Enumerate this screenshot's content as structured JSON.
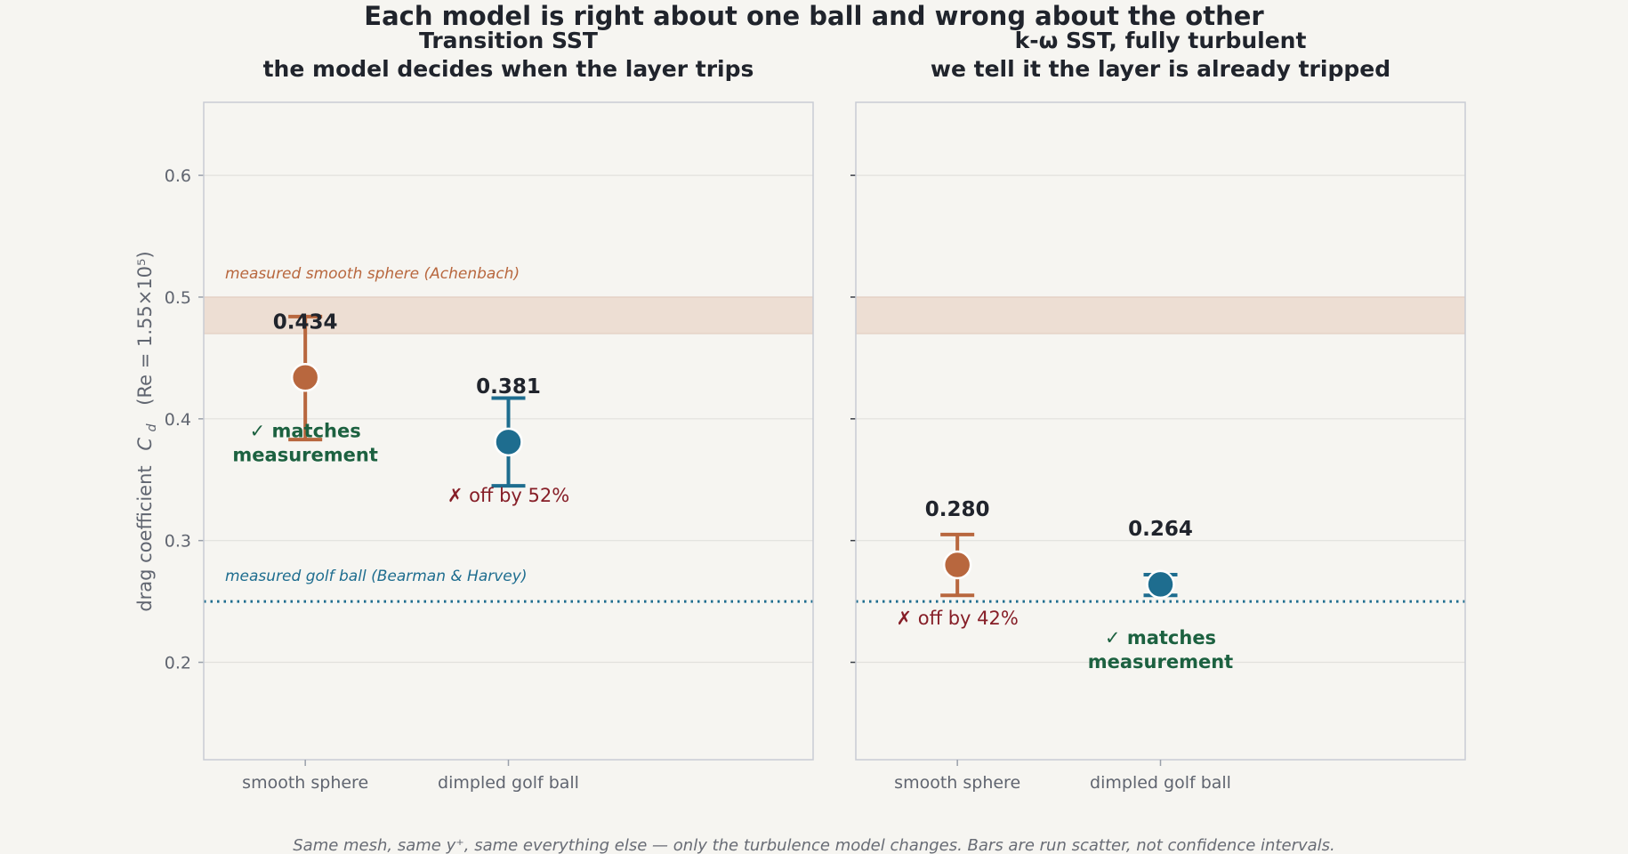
{
  "colors": {
    "smooth": "#b8673e",
    "golf": "#1e6d8f",
    "band": "#edded3",
    "good": "#1c6140",
    "bad": "#861e27",
    "grid": "#e2e1dd",
    "frame": "#c8ccd4"
  },
  "chart_data": {
    "type": "scatter",
    "title": "Each model is right about one ball and wrong about the other",
    "ylabel_prefix": "drag coefficient",
    "ylabel_symbol": "C",
    "ylabel_subscript": "d",
    "ylabel_suffix": "(Re = 1.55×10⁵)",
    "footnote": "Same mesh, same y⁺, same everything else — only the turbulence model changes. Bars are run scatter, not confidence intervals.",
    "ylim": [
      0.12,
      0.66
    ],
    "yticks": [
      0.2,
      0.3,
      0.4,
      0.5,
      0.6
    ],
    "ytick_labels": [
      "0.2",
      "0.3",
      "0.4",
      "0.5",
      "0.6"
    ],
    "categories": [
      "smooth sphere",
      "dimpled golf ball"
    ],
    "references": {
      "smooth_band": [
        0.47,
        0.5
      ],
      "smooth_label": "measured smooth sphere (Achenbach)",
      "golf_line": 0.25,
      "golf_label": "measured golf ball (Bearman & Harvey)"
    },
    "panels": [
      {
        "title_line1": "Transition SST",
        "title_line2": "the model decides when the layer trips",
        "points": [
          {
            "category": "smooth sphere",
            "value": 0.434,
            "label": "0.434",
            "err_low": 0.383,
            "err_high": 0.484,
            "verdict": "✓ matches measurement",
            "verdict_line1": "✓ matches",
            "verdict_line2": "measurement",
            "verdict_ok": true
          },
          {
            "category": "dimpled golf ball",
            "value": 0.381,
            "label": "0.381",
            "err_low": 0.345,
            "err_high": 0.417,
            "verdict": "✗ off by 52%",
            "verdict_line1": "✗ off by 52%",
            "verdict_line2": "",
            "verdict_ok": false
          }
        ]
      },
      {
        "title_line1": "k-ω SST, fully turbulent",
        "title_line2": "we tell it the layer is already tripped",
        "points": [
          {
            "category": "smooth sphere",
            "value": 0.28,
            "label": "0.280",
            "err_low": 0.255,
            "err_high": 0.305,
            "verdict": "✗ off by 42%",
            "verdict_line1": "✗ off by 42%",
            "verdict_line2": "",
            "verdict_ok": false
          },
          {
            "category": "dimpled golf ball",
            "value": 0.264,
            "label": "0.264",
            "err_low": 0.255,
            "err_high": 0.272,
            "verdict": "✓ matches measurement",
            "verdict_line1": "✓ matches",
            "verdict_line2": "measurement",
            "verdict_ok": true
          }
        ]
      }
    ]
  }
}
